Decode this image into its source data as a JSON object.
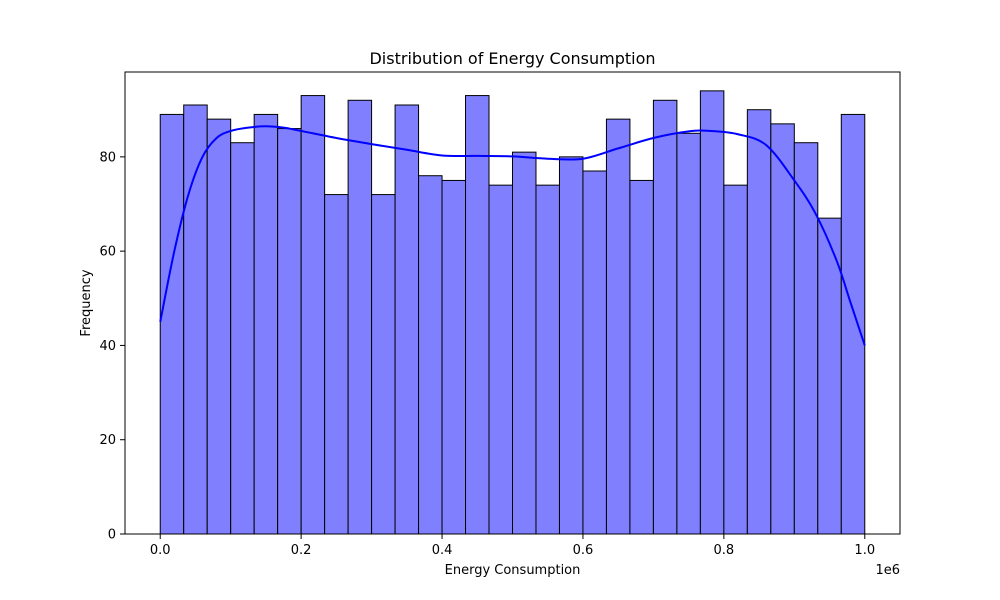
{
  "chart_data": {
    "type": "bar",
    "title": "Distribution of Energy Consumption",
    "xlabel": "Energy Consumption",
    "ylabel": "Frequency",
    "x_offset_label": "1e6",
    "xlim": [
      -0.05,
      1.05
    ],
    "ylim": [
      0,
      98
    ],
    "x_ticks": [
      {
        "value": 0.0,
        "label": "0.0"
      },
      {
        "value": 0.2,
        "label": "0.2"
      },
      {
        "value": 0.4,
        "label": "0.4"
      },
      {
        "value": 0.6,
        "label": "0.6"
      },
      {
        "value": 0.8,
        "label": "0.8"
      },
      {
        "value": 1.0,
        "label": "1.0"
      }
    ],
    "y_ticks": [
      {
        "value": 0,
        "label": "0"
      },
      {
        "value": 20,
        "label": "20"
      },
      {
        "value": 40,
        "label": "40"
      },
      {
        "value": 60,
        "label": "60"
      },
      {
        "value": 80,
        "label": "80"
      }
    ],
    "bin_range": [
      0.0,
      1.0
    ],
    "values": [
      89,
      91,
      88,
      83,
      89,
      86,
      93,
      72,
      92,
      72,
      91,
      76,
      75,
      93,
      74,
      81,
      74,
      80,
      77,
      88,
      75,
      92,
      85,
      94,
      74,
      90,
      87,
      83,
      67,
      89
    ],
    "kde": {
      "x": [
        0.0,
        0.02,
        0.04,
        0.06,
        0.08,
        0.1,
        0.125,
        0.15,
        0.175,
        0.2,
        0.25,
        0.3,
        0.35,
        0.4,
        0.45,
        0.5,
        0.55,
        0.6,
        0.65,
        0.7,
        0.75,
        0.78,
        0.82,
        0.86,
        0.9,
        0.93,
        0.96,
        0.98,
        1.0
      ],
      "y": [
        45,
        60,
        72,
        80,
        84,
        85.5,
        86.2,
        86.5,
        86.2,
        85.5,
        84,
        82.7,
        81.5,
        80.3,
        80.2,
        80.1,
        79.6,
        79.6,
        81.8,
        84,
        85.4,
        85.5,
        84.8,
        82.5,
        75,
        68,
        58,
        49,
        40
      ]
    },
    "grid": false,
    "legend": "none",
    "colors": {
      "bar_fill": "#8080ff",
      "bar_edge": "#000000",
      "kde_line": "#0000ff"
    }
  }
}
